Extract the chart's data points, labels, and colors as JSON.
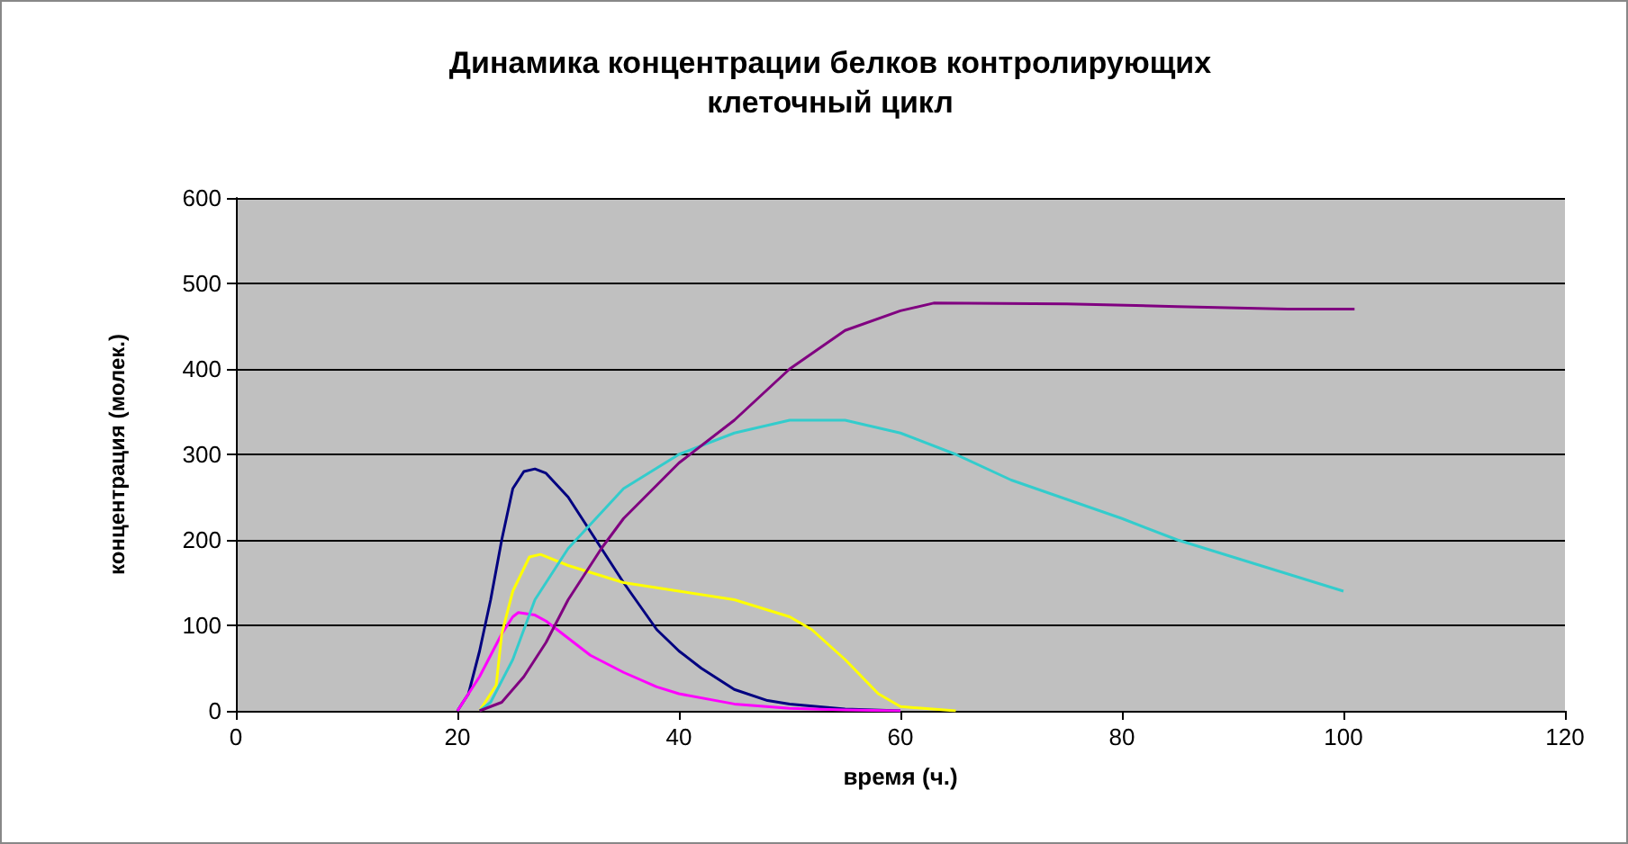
{
  "chart_data": {
    "type": "line",
    "title": "Динамика концентрации белков контролирующих\nклеточный цикл",
    "xlabel": "время (ч.)",
    "ylabel": "концентрация (молек.)",
    "xlim": [
      0,
      120
    ],
    "xticks": [
      0,
      20,
      40,
      60,
      80,
      100,
      120
    ],
    "ylim": [
      0,
      600
    ],
    "yticks": [
      0,
      100,
      200,
      300,
      400,
      500,
      600
    ],
    "grid": "y",
    "marker": "none",
    "line_style": "solid",
    "series": [
      {
        "color": "#000080",
        "x": [
          20,
          21,
          22,
          23,
          24,
          25,
          26,
          27,
          28,
          30,
          32,
          35,
          38,
          40,
          42,
          45,
          48,
          50,
          55,
          60
        ],
        "values": [
          0,
          20,
          70,
          130,
          200,
          260,
          280,
          283,
          278,
          250,
          210,
          150,
          95,
          70,
          50,
          25,
          12,
          8,
          2,
          0
        ]
      },
      {
        "color": "#ff00ff",
        "x": [
          20,
          22,
          24,
          25,
          25.5,
          27,
          28,
          30,
          32,
          35,
          38,
          40,
          45,
          50,
          55,
          60
        ],
        "values": [
          0,
          40,
          90,
          110,
          115,
          112,
          105,
          85,
          65,
          45,
          28,
          20,
          8,
          3,
          1,
          0
        ]
      },
      {
        "color": "#ffff00",
        "x": [
          22,
          23.5,
          24,
          25,
          26.5,
          27.5,
          30,
          35,
          40,
          45,
          50,
          52,
          55,
          58,
          60,
          65
        ],
        "values": [
          0,
          30,
          90,
          140,
          180,
          183,
          170,
          150,
          140,
          130,
          110,
          95,
          60,
          20,
          5,
          0
        ]
      },
      {
        "color": "#33cccc",
        "x": [
          22,
          23,
          25,
          27,
          30,
          35,
          40,
          45,
          50,
          55,
          60,
          65,
          70,
          80,
          85,
          90,
          100
        ],
        "values": [
          0,
          10,
          60,
          130,
          190,
          260,
          300,
          325,
          340,
          340,
          325,
          300,
          270,
          225,
          200,
          180,
          140
        ]
      },
      {
        "color": "#800080",
        "x": [
          22,
          24,
          26,
          28,
          30,
          33,
          35,
          40,
          45,
          50,
          55,
          60,
          63,
          75,
          85,
          95,
          101
        ],
        "values": [
          0,
          10,
          40,
          80,
          130,
          190,
          225,
          290,
          340,
          400,
          445,
          468,
          477,
          476,
          473,
          470,
          470
        ]
      }
    ]
  }
}
